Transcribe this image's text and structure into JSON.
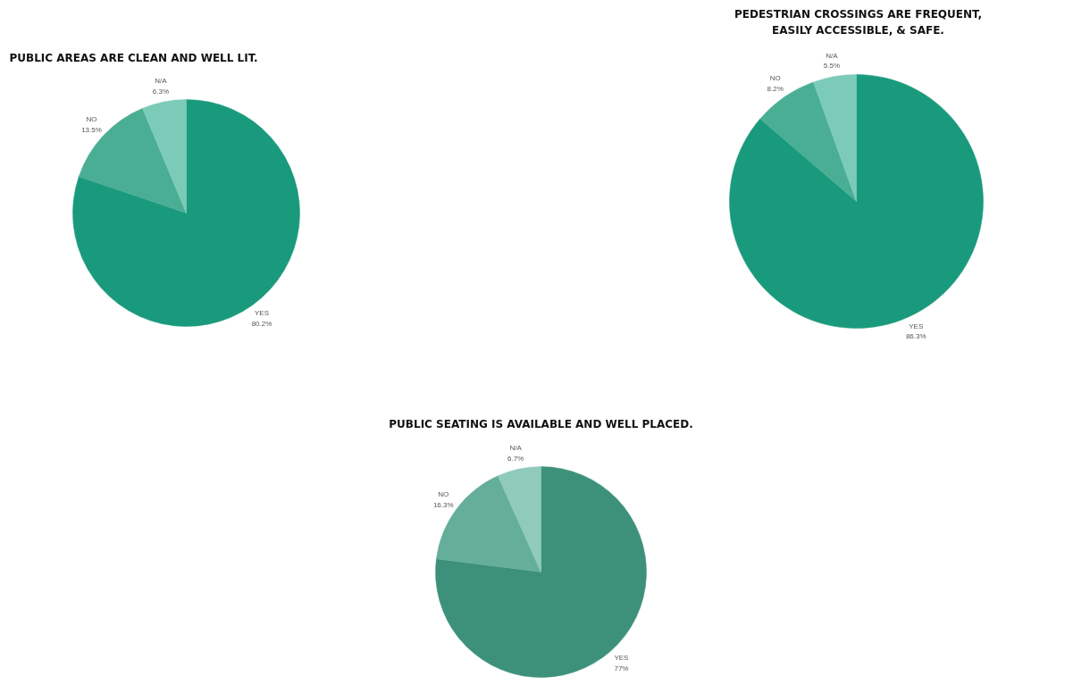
{
  "chart_data": [
    {
      "type": "pie",
      "title": "PUBLIC AREAS ARE CLEAN AND WELL LIT.",
      "categories": [
        "YES",
        "NO",
        "N/A"
      ],
      "values": [
        80.2,
        13.5,
        6.3
      ],
      "value_labels": [
        "80.2%",
        "13.5%",
        "6.3%"
      ],
      "colors": [
        "#1a9a7c",
        "#4aae95",
        "#7ccbb9"
      ]
    },
    {
      "type": "pie",
      "title": "PEDESTRIAN CROSSINGS ARE FREQUENT,\nEASILY ACCESSIBLE, & SAFE.",
      "categories": [
        "YES",
        "NO",
        "N/A"
      ],
      "values": [
        86.3,
        8.2,
        5.5
      ],
      "value_labels": [
        "86.3%",
        "8.2%",
        "5.5%"
      ],
      "colors": [
        "#1a9a7c",
        "#4aae95",
        "#7ccbb9"
      ]
    },
    {
      "type": "pie",
      "title": "PUBLIC SEATING IS AVAILABLE AND WELL PLACED.",
      "categories": [
        "YES",
        "NO",
        "N/A"
      ],
      "values": [
        77,
        16.3,
        6.7
      ],
      "value_labels": [
        "77%",
        "16.3%",
        "6.7%"
      ],
      "colors": [
        "#3d917a",
        "#64ae9a",
        "#8fcabb"
      ]
    }
  ]
}
